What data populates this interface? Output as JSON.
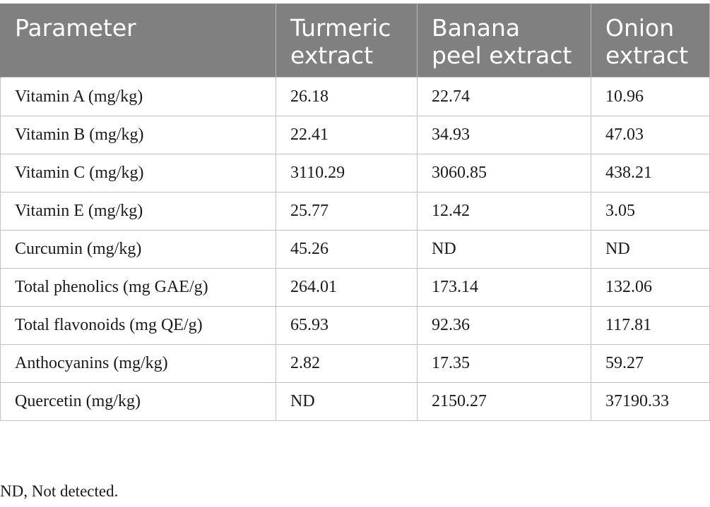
{
  "table": {
    "headers": [
      [
        "Parameter"
      ],
      [
        "Turmeric",
        "extract"
      ],
      [
        "Banana",
        "peel extract"
      ],
      [
        "Onion",
        "extract"
      ]
    ],
    "rows": [
      [
        "Vitamin A (mg/kg)",
        "26.18",
        "22.74",
        "10.96"
      ],
      [
        "Vitamin B (mg/kg)",
        "22.41",
        "34.93",
        "47.03"
      ],
      [
        "Vitamin C (mg/kg)",
        "3110.29",
        "3060.85",
        "438.21"
      ],
      [
        "Vitamin E (mg/kg)",
        "25.77",
        "12.42",
        "3.05"
      ],
      [
        "Curcumin (mg/kg)",
        "45.26",
        "ND",
        "ND"
      ],
      [
        "Total phenolics (mg GAE/g)",
        "264.01",
        "173.14",
        "132.06"
      ],
      [
        "Total flavonoids (mg QE/g)",
        "65.93",
        "92.36",
        "117.81"
      ],
      [
        "Anthocyanins (mg/kg)",
        "2.82",
        "17.35",
        "59.27"
      ],
      [
        "Quercetin (mg/kg)",
        "ND",
        "2150.27",
        "37190.33"
      ]
    ]
  },
  "footnote": "ND, Not detected."
}
